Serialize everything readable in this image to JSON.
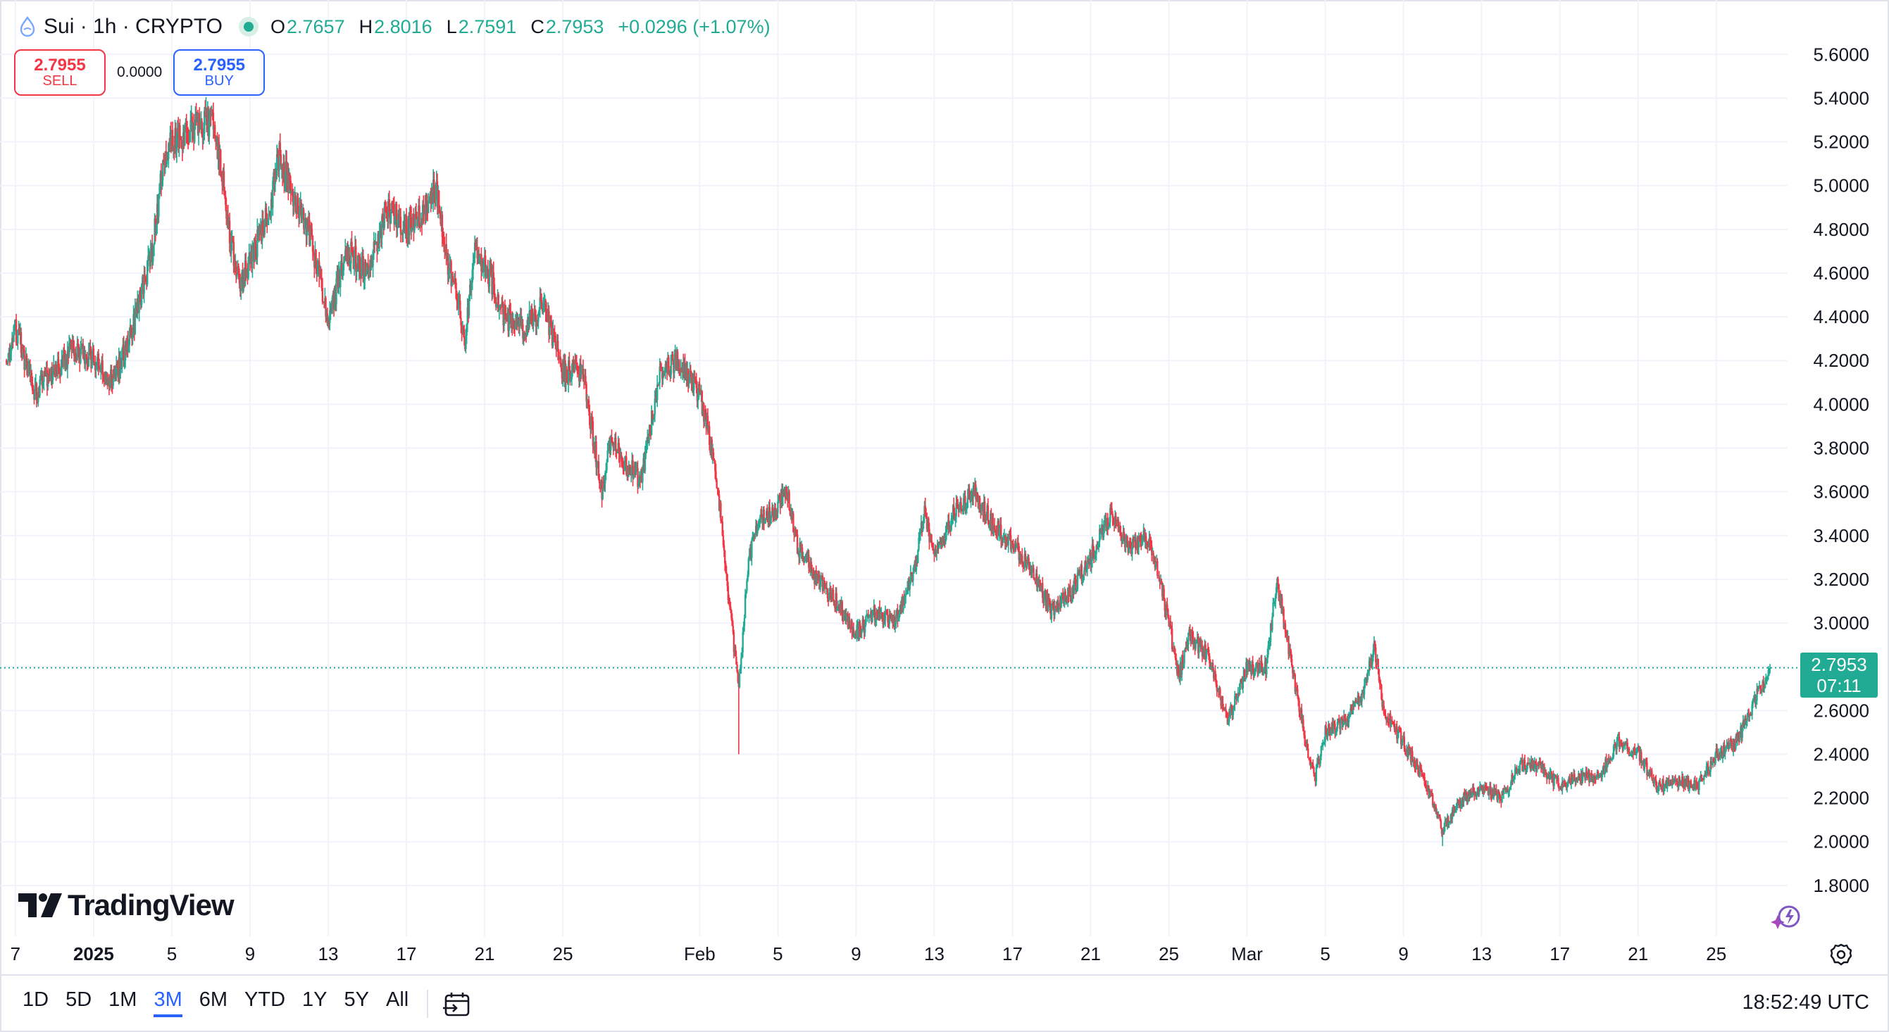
{
  "header": {
    "symbol_title": "Sui · 1h · CRYPTO",
    "ohlc": [
      {
        "key": "O",
        "value": "2.7657"
      },
      {
        "key": "H",
        "value": "2.8016"
      },
      {
        "key": "L",
        "value": "2.7591"
      },
      {
        "key": "C",
        "value": "2.7953"
      }
    ],
    "change": "+0.0296 (+1.07%)",
    "status_color": "#22ab94",
    "sym_icon": "sui-drop-icon"
  },
  "trade": {
    "sell_price": "2.7955",
    "sell_label": "SELL",
    "spread": "0.0000",
    "buy_price": "2.7955",
    "buy_label": "BUY",
    "sell_color": "#f23645",
    "buy_color": "#2962ff"
  },
  "price_tag": {
    "price": "2.7953",
    "countdown": "07:11",
    "color": "#22ab94"
  },
  "watermark": "TradingView",
  "toolbar": {
    "ranges": [
      "1D",
      "5D",
      "1M",
      "3M",
      "6M",
      "YTD",
      "1Y",
      "5Y",
      "All"
    ],
    "active_range": "3M",
    "clock": "18:52:49 UTC",
    "goto_icon": "calendar-goto-icon",
    "settings_icon": "gear-icon",
    "assistant_icon": "sparkle-icon"
  },
  "chart_data": {
    "type": "candlestick",
    "title": "Sui · 1h · CRYPTO",
    "timeframe": "1h",
    "up_color": "#22ab94",
    "down_color": "#f23645",
    "grid": true,
    "ylim": [
      1.6,
      5.72
    ],
    "y_ticks": [
      "1.8000",
      "2.0000",
      "2.2000",
      "2.4000",
      "2.6000",
      "2.8000",
      "3.0000",
      "3.2000",
      "3.4000",
      "3.6000",
      "3.8000",
      "4.0000",
      "4.2000",
      "4.4000",
      "4.6000",
      "4.8000",
      "5.0000",
      "5.2000",
      "5.4000",
      "5.6000"
    ],
    "x_ticks": [
      {
        "label": "7",
        "date": "2024-12-28"
      },
      {
        "label": "2025",
        "date": "2025-01-01",
        "bold": true
      },
      {
        "label": "5",
        "date": "2025-01-05"
      },
      {
        "label": "9",
        "date": "2025-01-09"
      },
      {
        "label": "13",
        "date": "2025-01-13"
      },
      {
        "label": "17",
        "date": "2025-01-17"
      },
      {
        "label": "21",
        "date": "2025-01-21"
      },
      {
        "label": "25",
        "date": "2025-01-25"
      },
      {
        "label": "Feb",
        "date": "2025-02-01"
      },
      {
        "label": "5",
        "date": "2025-02-05"
      },
      {
        "label": "9",
        "date": "2025-02-09"
      },
      {
        "label": "13",
        "date": "2025-02-13"
      },
      {
        "label": "17",
        "date": "2025-02-17"
      },
      {
        "label": "21",
        "date": "2025-02-21"
      },
      {
        "label": "25",
        "date": "2025-02-25"
      },
      {
        "label": "Mar",
        "date": "2025-03-01"
      },
      {
        "label": "5",
        "date": "2025-03-05"
      },
      {
        "label": "9",
        "date": "2025-03-09"
      },
      {
        "label": "13",
        "date": "2025-03-13"
      },
      {
        "label": "17",
        "date": "2025-03-17"
      },
      {
        "label": "21",
        "date": "2025-03-21"
      },
      {
        "label": "25",
        "date": "2025-03-25"
      }
    ],
    "x_range": [
      "2024-12-27T12:00",
      "2025-03-28T00:00"
    ],
    "last_price": 2.7953,
    "close_path": [
      {
        "t": "2024-12-27T12:00",
        "close": 4.2
      },
      {
        "t": "2024-12-28T00:00",
        "close": 4.35
      },
      {
        "t": "2024-12-29T00:00",
        "close": 4.05
      },
      {
        "t": "2024-12-30T00:00",
        "close": 4.15
      },
      {
        "t": "2024-12-31T00:00",
        "close": 4.25
      },
      {
        "t": "2025-01-01T00:00",
        "close": 4.2
      },
      {
        "t": "2025-01-02T00:00",
        "close": 4.1
      },
      {
        "t": "2025-01-03T00:00",
        "close": 4.35
      },
      {
        "t": "2025-01-04T00:00",
        "close": 4.7
      },
      {
        "t": "2025-01-04T12:00",
        "close": 5.05
      },
      {
        "t": "2025-01-05T00:00",
        "close": 5.2
      },
      {
        "t": "2025-01-06T00:00",
        "close": 5.25
      },
      {
        "t": "2025-01-07T00:00",
        "close": 5.3
      },
      {
        "t": "2025-01-07T12:00",
        "close": 5.1
      },
      {
        "t": "2025-01-08T00:00",
        "close": 4.75
      },
      {
        "t": "2025-01-08T12:00",
        "close": 4.55
      },
      {
        "t": "2025-01-09T00:00",
        "close": 4.65
      },
      {
        "t": "2025-01-10T00:00",
        "close": 4.9
      },
      {
        "t": "2025-01-10T12:00",
        "close": 5.15
      },
      {
        "t": "2025-01-11T00:00",
        "close": 5.0
      },
      {
        "t": "2025-01-12T00:00",
        "close": 4.8
      },
      {
        "t": "2025-01-13T00:00",
        "close": 4.4
      },
      {
        "t": "2025-01-14T00:00",
        "close": 4.7
      },
      {
        "t": "2025-01-15T00:00",
        "close": 4.6
      },
      {
        "t": "2025-01-16T00:00",
        "close": 4.9
      },
      {
        "t": "2025-01-17T00:00",
        "close": 4.8
      },
      {
        "t": "2025-01-18T00:00",
        "close": 4.9
      },
      {
        "t": "2025-01-18T12:00",
        "close": 5.0
      },
      {
        "t": "2025-01-19T00:00",
        "close": 4.7
      },
      {
        "t": "2025-01-20T00:00",
        "close": 4.3
      },
      {
        "t": "2025-01-20T12:00",
        "close": 4.7
      },
      {
        "t": "2025-01-21T00:00",
        "close": 4.65
      },
      {
        "t": "2025-01-22T00:00",
        "close": 4.4
      },
      {
        "t": "2025-01-23T00:00",
        "close": 4.35
      },
      {
        "t": "2025-01-24T00:00",
        "close": 4.45
      },
      {
        "t": "2025-01-25T00:00",
        "close": 4.15
      },
      {
        "t": "2025-01-26T00:00",
        "close": 4.15
      },
      {
        "t": "2025-01-27T00:00",
        "close": 3.6
      },
      {
        "t": "2025-01-27T12:00",
        "close": 3.85
      },
      {
        "t": "2025-01-28T00:00",
        "close": 3.75
      },
      {
        "t": "2025-01-29T00:00",
        "close": 3.65
      },
      {
        "t": "2025-01-30T00:00",
        "close": 4.15
      },
      {
        "t": "2025-01-31T00:00",
        "close": 4.2
      },
      {
        "t": "2025-02-01T00:00",
        "close": 4.05
      },
      {
        "t": "2025-02-01T12:00",
        "close": 3.85
      },
      {
        "t": "2025-02-02T00:00",
        "close": 3.55
      },
      {
        "t": "2025-02-02T12:00",
        "close": 3.1
      },
      {
        "t": "2025-02-03T00:00",
        "close": 2.7
      },
      {
        "t": "2025-02-03T12:00",
        "close": 3.3
      },
      {
        "t": "2025-02-04T00:00",
        "close": 3.45
      },
      {
        "t": "2025-02-05T00:00",
        "close": 3.55
      },
      {
        "t": "2025-02-05T12:00",
        "close": 3.6
      },
      {
        "t": "2025-02-06T00:00",
        "close": 3.35
      },
      {
        "t": "2025-02-07T00:00",
        "close": 3.2
      },
      {
        "t": "2025-02-08T00:00",
        "close": 3.1
      },
      {
        "t": "2025-02-09T00:00",
        "close": 2.95
      },
      {
        "t": "2025-02-10T00:00",
        "close": 3.05
      },
      {
        "t": "2025-02-11T00:00",
        "close": 3.0
      },
      {
        "t": "2025-02-12T00:00",
        "close": 3.25
      },
      {
        "t": "2025-02-12T12:00",
        "close": 3.5
      },
      {
        "t": "2025-02-13T00:00",
        "close": 3.3
      },
      {
        "t": "2025-02-14T00:00",
        "close": 3.5
      },
      {
        "t": "2025-02-15T00:00",
        "close": 3.6
      },
      {
        "t": "2025-02-16T00:00",
        "close": 3.45
      },
      {
        "t": "2025-02-17T00:00",
        "close": 3.35
      },
      {
        "t": "2025-02-18T00:00",
        "close": 3.25
      },
      {
        "t": "2025-02-19T00:00",
        "close": 3.05
      },
      {
        "t": "2025-02-20T00:00",
        "close": 3.15
      },
      {
        "t": "2025-02-21T00:00",
        "close": 3.3
      },
      {
        "t": "2025-02-22T00:00",
        "close": 3.5
      },
      {
        "t": "2025-02-23T00:00",
        "close": 3.35
      },
      {
        "t": "2025-02-24T00:00",
        "close": 3.4
      },
      {
        "t": "2025-02-25T00:00",
        "close": 3.0
      },
      {
        "t": "2025-02-25T12:00",
        "close": 2.75
      },
      {
        "t": "2025-02-26T00:00",
        "close": 2.95
      },
      {
        "t": "2025-02-27T00:00",
        "close": 2.85
      },
      {
        "t": "2025-02-28T00:00",
        "close": 2.55
      },
      {
        "t": "2025-03-01T00:00",
        "close": 2.8
      },
      {
        "t": "2025-03-02T00:00",
        "close": 2.8
      },
      {
        "t": "2025-03-02T12:00",
        "close": 3.2
      },
      {
        "t": "2025-03-03T00:00",
        "close": 2.95
      },
      {
        "t": "2025-03-04T00:00",
        "close": 2.45
      },
      {
        "t": "2025-03-04T12:00",
        "close": 2.3
      },
      {
        "t": "2025-03-05T00:00",
        "close": 2.5
      },
      {
        "t": "2025-03-06T00:00",
        "close": 2.55
      },
      {
        "t": "2025-03-07T00:00",
        "close": 2.7
      },
      {
        "t": "2025-03-07T12:00",
        "close": 2.9
      },
      {
        "t": "2025-03-08T00:00",
        "close": 2.6
      },
      {
        "t": "2025-03-09T00:00",
        "close": 2.45
      },
      {
        "t": "2025-03-10T00:00",
        "close": 2.3
      },
      {
        "t": "2025-03-11T00:00",
        "close": 2.05
      },
      {
        "t": "2025-03-12T00:00",
        "close": 2.2
      },
      {
        "t": "2025-03-13T00:00",
        "close": 2.25
      },
      {
        "t": "2025-03-14T00:00",
        "close": 2.2
      },
      {
        "t": "2025-03-15T00:00",
        "close": 2.35
      },
      {
        "t": "2025-03-16T00:00",
        "close": 2.35
      },
      {
        "t": "2025-03-17T00:00",
        "close": 2.25
      },
      {
        "t": "2025-03-18T00:00",
        "close": 2.3
      },
      {
        "t": "2025-03-19T00:00",
        "close": 2.3
      },
      {
        "t": "2025-03-20T00:00",
        "close": 2.45
      },
      {
        "t": "2025-03-21T00:00",
        "close": 2.4
      },
      {
        "t": "2025-03-22T00:00",
        "close": 2.25
      },
      {
        "t": "2025-03-23T00:00",
        "close": 2.28
      },
      {
        "t": "2025-03-24T00:00",
        "close": 2.25
      },
      {
        "t": "2025-03-25T00:00",
        "close": 2.4
      },
      {
        "t": "2025-03-26T00:00",
        "close": 2.45
      },
      {
        "t": "2025-03-27T00:00",
        "close": 2.65
      },
      {
        "t": "2025-03-27T18:00",
        "close": 2.7953
      }
    ],
    "notable_extremes": [
      {
        "t": "2025-01-06T12:00",
        "high": 5.34
      },
      {
        "t": "2025-02-03T00:00",
        "low": 2.4
      },
      {
        "t": "2025-03-11T00:00",
        "low": 1.98
      }
    ]
  }
}
